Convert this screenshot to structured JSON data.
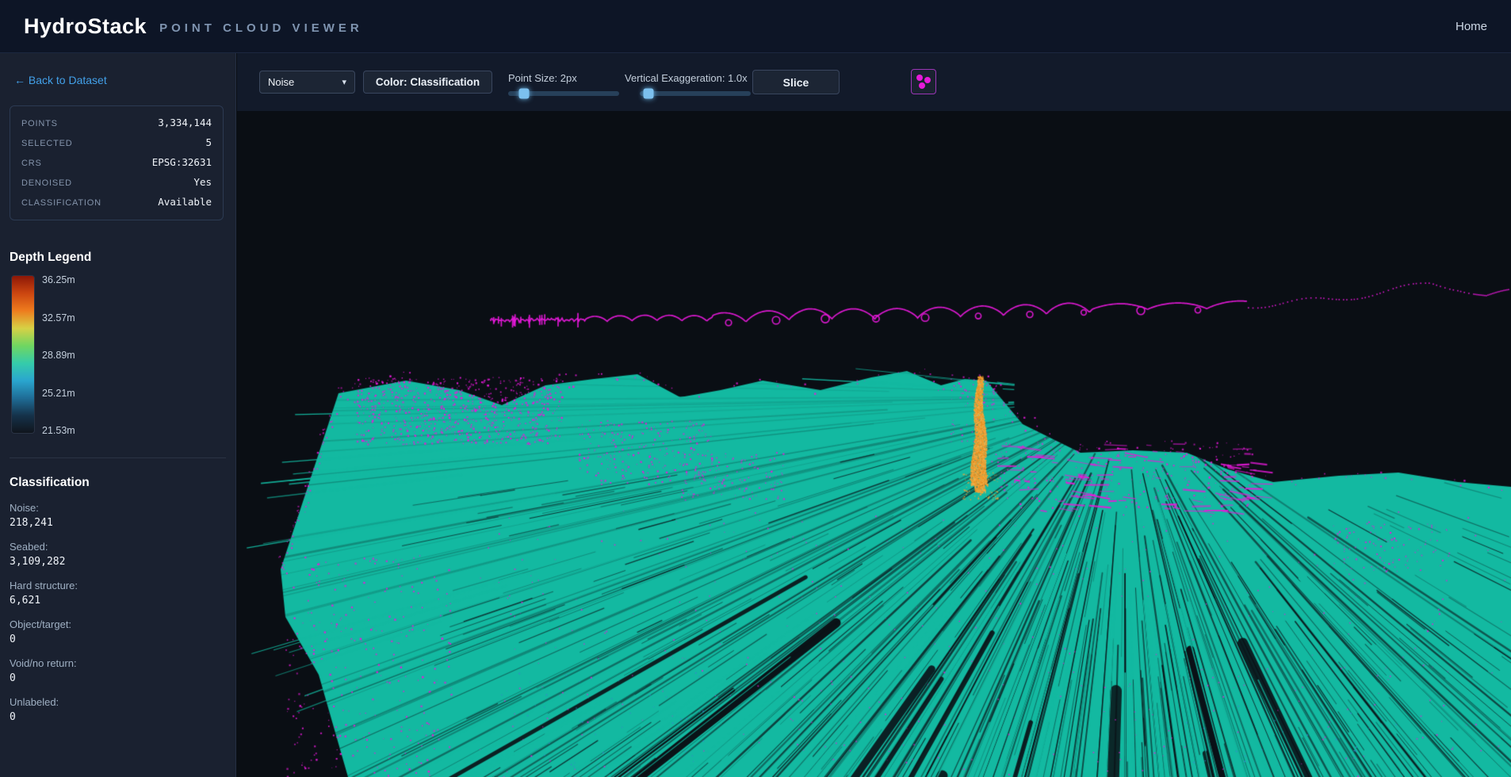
{
  "header": {
    "title": "HydroStack",
    "subtitle": "POINT CLOUD VIEWER",
    "nav_home": "Home"
  },
  "sidebar": {
    "back_link": "← Back to Dataset",
    "info": {
      "rows": [
        {
          "label": "POINTS",
          "value": "3,334,144"
        },
        {
          "label": "SELECTED",
          "value": "5"
        },
        {
          "label": "CRS",
          "value": "EPSG:32631"
        },
        {
          "label": "DENOISED",
          "value": "Yes"
        },
        {
          "label": "CLASSIFICATION",
          "value": "Available"
        }
      ]
    },
    "depth_legend": {
      "title": "Depth Legend",
      "ticks": [
        "36.25m",
        "32.57m",
        "28.89m",
        "25.21m",
        "21.53m"
      ],
      "gradient": [
        "#8c1707",
        "#cc4610",
        "#ee7c1e",
        "#d7d145",
        "#70d661",
        "#35ccaa",
        "#2aa6cf",
        "#1f6d97",
        "#15324a",
        "#10151d"
      ]
    },
    "classification": {
      "title": "Classification",
      "items": [
        {
          "label": "Noise:",
          "value": "218,241"
        },
        {
          "label": "Seabed:",
          "value": "3,109,282"
        },
        {
          "label": "Hard structure:",
          "value": "6,621"
        },
        {
          "label": "Object/target:",
          "value": "0"
        },
        {
          "label": "Void/no return:",
          "value": "0"
        },
        {
          "label": "Unlabeled:",
          "value": "0"
        }
      ]
    }
  },
  "toolbar": {
    "class_select": {
      "value": "Noise",
      "chevron": "▾"
    },
    "color_mode_button": "Color: Classification",
    "point_size": {
      "label": "Point Size: 2px",
      "slider_pos": "14%"
    },
    "vertical_exaggeration": {
      "label": "Vertical Exaggeration: 1.0x",
      "slider_pos": "8%"
    },
    "slice_button": "Slice"
  },
  "viewer": {
    "background": "#0a0e14",
    "class_colors": {
      "noise": "#e619d9",
      "seabed": "#13b9a1",
      "hard_structure": "#f2a132"
    },
    "features": [
      "surface-noise-trace",
      "seabed-swath-fan",
      "hard-structure-column",
      "noise-speckle"
    ]
  }
}
